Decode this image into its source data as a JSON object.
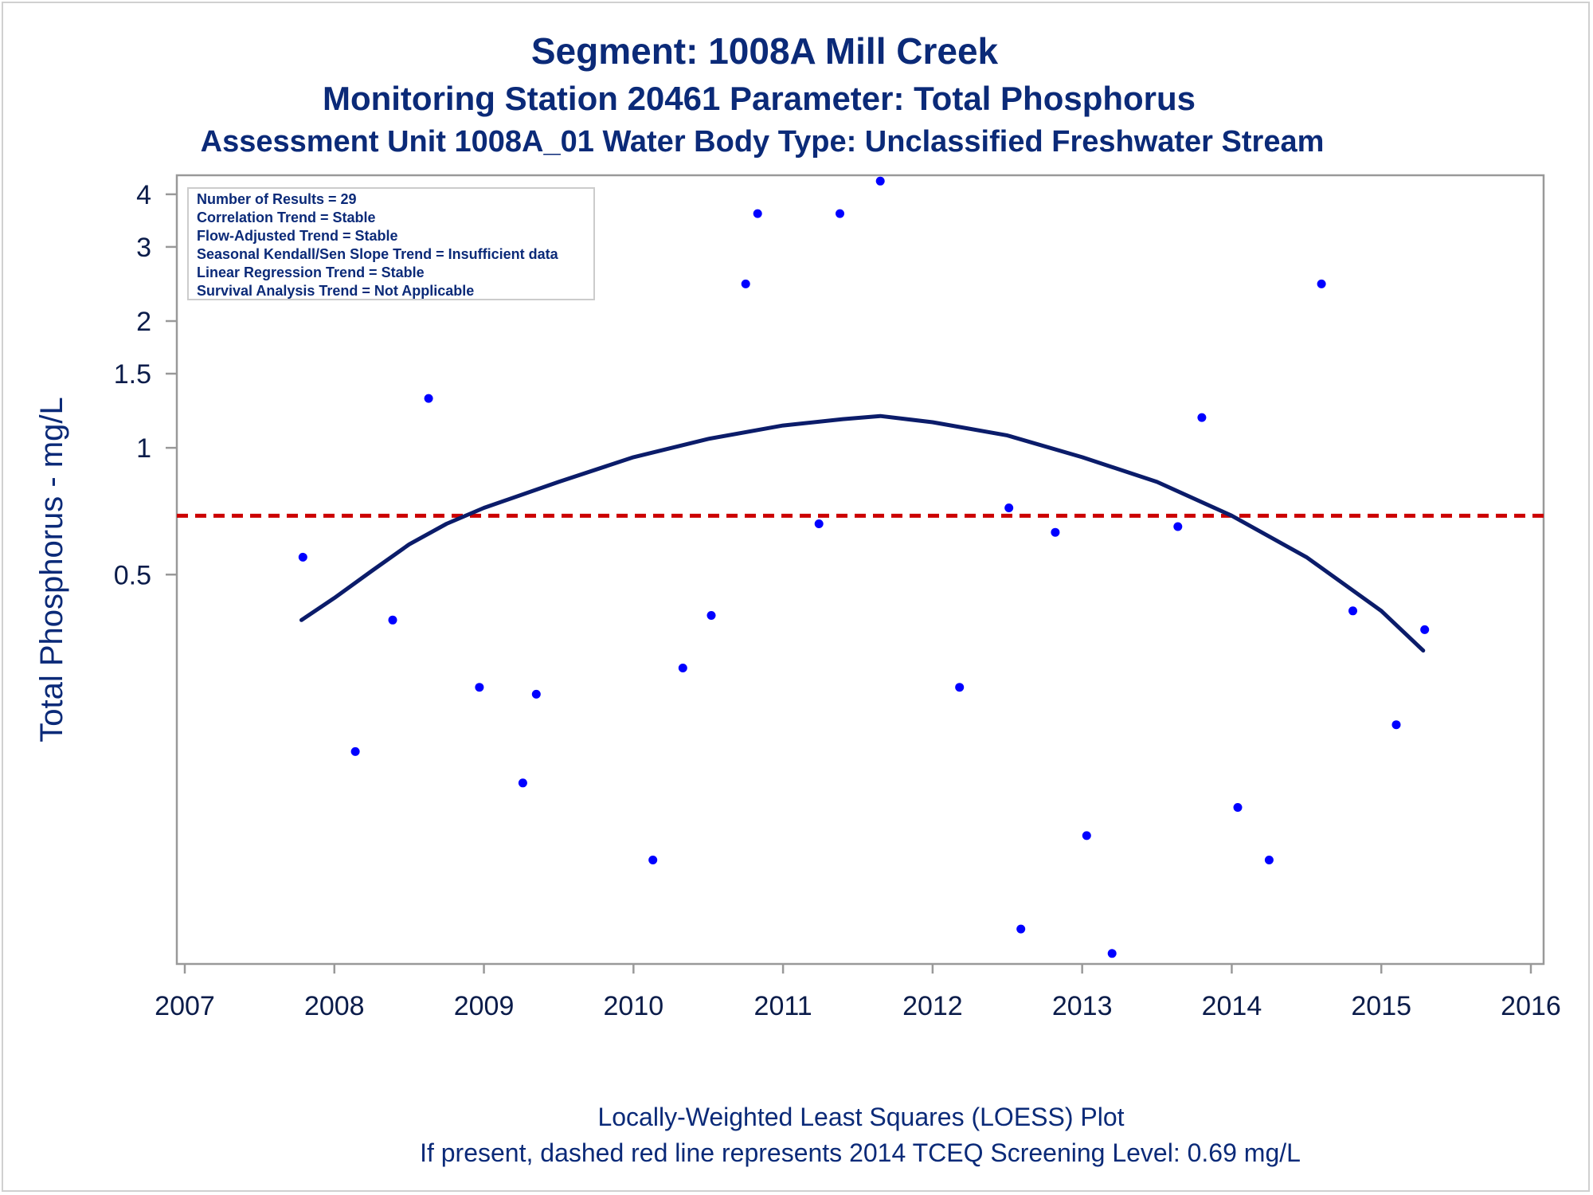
{
  "titles": {
    "line1": "Segment: 1008A  Mill Creek",
    "line2": "Monitoring Station 20461 Parameter: Total Phosphorus",
    "line3": "Assessment Unit 1008A_01   Water Body Type: Unclassified Freshwater Stream"
  },
  "footnotes": {
    "line1": "Locally-Weighted Least Squares (LOESS) Plot",
    "line2": "If present, dashed red line represents 2014 TCEQ Screening Level: 0.69 mg/L"
  },
  "stats_box": [
    "Number of Results = 29",
    "Correlation Trend = Stable",
    "Flow-Adjusted Trend = Stable",
    "Seasonal Kendall/Sen Slope Trend = Insufficient data",
    "Linear Regression Trend = Stable",
    "Survival Analysis Trend = Not Applicable"
  ],
  "colors": {
    "points": "#0000ff",
    "loess": "#0b1c6a",
    "screening": "#cc0000",
    "text": "#0b2a78",
    "axis": "#999999"
  },
  "chart_data": {
    "type": "scatter",
    "xlabel": "",
    "ylabel": "Total Phosphorus - mg/L",
    "x_scale": "linear",
    "y_scale": "log",
    "xlim": [
      2007,
      2016
    ],
    "ylim": [
      0.06,
      4.4
    ],
    "x_ticks": [
      2007,
      2008,
      2009,
      2010,
      2011,
      2012,
      2013,
      2014,
      2015,
      2016
    ],
    "x_tick_labels": [
      "2007",
      "2008",
      "2009",
      "2010",
      "2011",
      "2012",
      "2013",
      "2014",
      "2015",
      "2016"
    ],
    "y_ticks": [
      0.5,
      1,
      1.5,
      2,
      3,
      4
    ],
    "y_tick_labels": [
      "0.5",
      "1",
      "1.5",
      "2",
      "3",
      "4"
    ],
    "grid": false,
    "legend_position": "top-left",
    "screening_level": 0.69,
    "points": [
      {
        "x": 2007.79,
        "y": 0.55
      },
      {
        "x": 2008.14,
        "y": 0.19
      },
      {
        "x": 2008.39,
        "y": 0.39
      },
      {
        "x": 2008.63,
        "y": 1.31
      },
      {
        "x": 2008.97,
        "y": 0.27
      },
      {
        "x": 2009.26,
        "y": 0.16
      },
      {
        "x": 2009.35,
        "y": 0.26
      },
      {
        "x": 2010.13,
        "y": 0.105
      },
      {
        "x": 2010.33,
        "y": 0.3
      },
      {
        "x": 2010.52,
        "y": 0.4
      },
      {
        "x": 2010.75,
        "y": 2.45
      },
      {
        "x": 2010.83,
        "y": 3.6
      },
      {
        "x": 2011.24,
        "y": 0.66
      },
      {
        "x": 2011.38,
        "y": 3.6
      },
      {
        "x": 2011.65,
        "y": 4.3
      },
      {
        "x": 2012.18,
        "y": 0.27
      },
      {
        "x": 2012.51,
        "y": 0.72
      },
      {
        "x": 2012.59,
        "y": 0.072
      },
      {
        "x": 2012.82,
        "y": 0.63
      },
      {
        "x": 2013.03,
        "y": 0.12
      },
      {
        "x": 2013.2,
        "y": 0.063
      },
      {
        "x": 2013.64,
        "y": 0.65
      },
      {
        "x": 2013.8,
        "y": 1.18
      },
      {
        "x": 2014.04,
        "y": 0.14
      },
      {
        "x": 2014.25,
        "y": 0.105
      },
      {
        "x": 2014.6,
        "y": 2.45
      },
      {
        "x": 2014.81,
        "y": 0.41
      },
      {
        "x": 2015.1,
        "y": 0.22
      },
      {
        "x": 2015.29,
        "y": 0.37
      }
    ],
    "loess": [
      {
        "x": 2007.78,
        "y": 0.39
      },
      {
        "x": 2008.0,
        "y": 0.44
      },
      {
        "x": 2008.25,
        "y": 0.51
      },
      {
        "x": 2008.5,
        "y": 0.59
      },
      {
        "x": 2008.75,
        "y": 0.66
      },
      {
        "x": 2009.0,
        "y": 0.72
      },
      {
        "x": 2009.5,
        "y": 0.83
      },
      {
        "x": 2010.0,
        "y": 0.95
      },
      {
        "x": 2010.5,
        "y": 1.05
      },
      {
        "x": 2011.0,
        "y": 1.13
      },
      {
        "x": 2011.4,
        "y": 1.17
      },
      {
        "x": 2011.65,
        "y": 1.19
      },
      {
        "x": 2012.0,
        "y": 1.15
      },
      {
        "x": 2012.5,
        "y": 1.07
      },
      {
        "x": 2013.0,
        "y": 0.95
      },
      {
        "x": 2013.5,
        "y": 0.83
      },
      {
        "x": 2014.0,
        "y": 0.69
      },
      {
        "x": 2014.5,
        "y": 0.55
      },
      {
        "x": 2015.0,
        "y": 0.41
      },
      {
        "x": 2015.28,
        "y": 0.33
      }
    ]
  }
}
